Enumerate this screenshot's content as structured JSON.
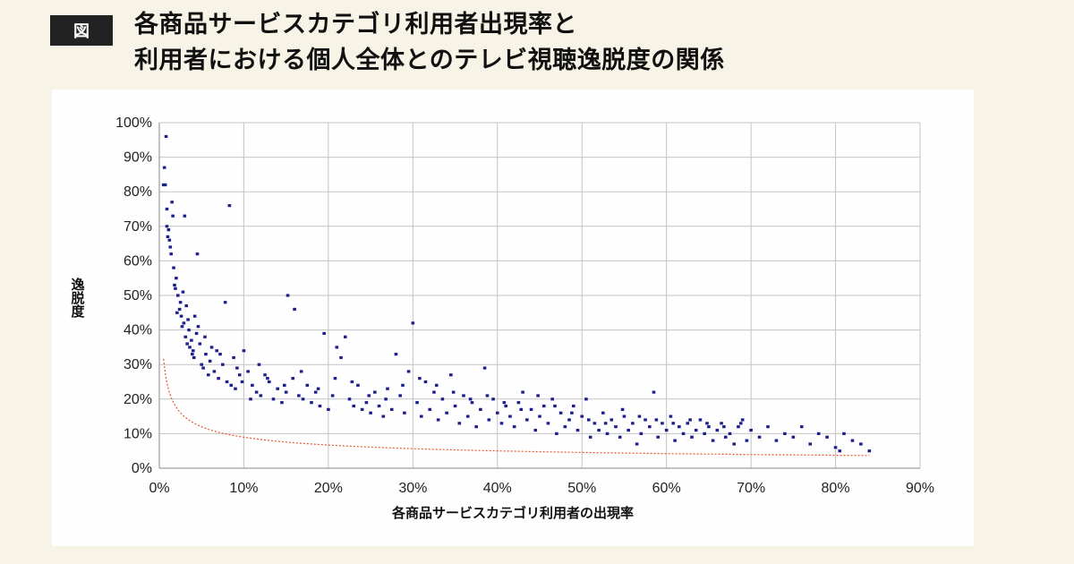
{
  "header": {
    "badge": "図",
    "title_line1": "各商品サービスカテゴリ利用者出現率と",
    "title_line2": "利用者における個人全体とのテレビ視聴逸脱度の関係"
  },
  "colors": {
    "background": "#f7f3e6",
    "panel": "#fefefe",
    "points": "#1c1f8c",
    "trendline": "#e8552f",
    "grid": "#c4c4c4"
  },
  "chart_data": {
    "type": "scatter",
    "xlabel": "各商品サービスカテゴリ利用者の出現率",
    "ylabel": "逸脱度",
    "xlim": [
      0,
      90
    ],
    "ylim": [
      0,
      100
    ],
    "x_ticks": [
      "0%",
      "10%",
      "20%",
      "30%",
      "40%",
      "50%",
      "60%",
      "70%",
      "80%",
      "90%"
    ],
    "y_ticks": [
      "0%",
      "10%",
      "20%",
      "30%",
      "40%",
      "50%",
      "60%",
      "70%",
      "80%",
      "90%",
      "100%"
    ],
    "grid": true,
    "trendline": {
      "type": "power",
      "a": 23.6,
      "b": -0.42
    },
    "points": [
      [
        0.8,
        96
      ],
      [
        0.6,
        87
      ],
      [
        0.5,
        82
      ],
      [
        0.7,
        82
      ],
      [
        0.9,
        75
      ],
      [
        0.9,
        70
      ],
      [
        1.1,
        69
      ],
      [
        1.0,
        67
      ],
      [
        1.2,
        66
      ],
      [
        1.5,
        77
      ],
      [
        1.6,
        73
      ],
      [
        1.3,
        64
      ],
      [
        1.4,
        62
      ],
      [
        1.7,
        58
      ],
      [
        2.0,
        55
      ],
      [
        1.8,
        53
      ],
      [
        2.2,
        50
      ],
      [
        2.5,
        48
      ],
      [
        2.1,
        45
      ],
      [
        2.8,
        51
      ],
      [
        3.0,
        73
      ],
      [
        3.2,
        47
      ],
      [
        2.6,
        44
      ],
      [
        2.9,
        42
      ],
      [
        3.5,
        40
      ],
      [
        3.1,
        38
      ],
      [
        3.8,
        37
      ],
      [
        2.7,
        41
      ],
      [
        3.3,
        36
      ],
      [
        3.6,
        35
      ],
      [
        4.0,
        34
      ],
      [
        3.9,
        33
      ],
      [
        4.2,
        44
      ],
      [
        4.5,
        62
      ],
      [
        4.4,
        39
      ],
      [
        4.8,
        36
      ],
      [
        4.1,
        32
      ],
      [
        5.0,
        30
      ],
      [
        5.5,
        33
      ],
      [
        5.2,
        29
      ],
      [
        6.0,
        31
      ],
      [
        6.5,
        28
      ],
      [
        5.8,
        27
      ],
      [
        7.0,
        26
      ],
      [
        7.5,
        30
      ],
      [
        8.0,
        25
      ],
      [
        8.3,
        76
      ],
      [
        8.5,
        24
      ],
      [
        9.0,
        23
      ],
      [
        9.5,
        27
      ],
      [
        7.8,
        48
      ],
      [
        8.8,
        32
      ],
      [
        9.8,
        25
      ],
      [
        10.0,
        34
      ],
      [
        10.5,
        28
      ],
      [
        11.0,
        24
      ],
      [
        11.5,
        22
      ],
      [
        12.0,
        21
      ],
      [
        12.5,
        27
      ],
      [
        13.0,
        25
      ],
      [
        13.5,
        20
      ],
      [
        14.0,
        23
      ],
      [
        14.5,
        19
      ],
      [
        15.0,
        22
      ],
      [
        15.2,
        50
      ],
      [
        15.8,
        26
      ],
      [
        16.0,
        46
      ],
      [
        16.5,
        21
      ],
      [
        17.0,
        20
      ],
      [
        17.5,
        24
      ],
      [
        18.0,
        19
      ],
      [
        18.5,
        22
      ],
      [
        19.0,
        18
      ],
      [
        19.5,
        39
      ],
      [
        20.0,
        17
      ],
      [
        20.5,
        21
      ],
      [
        21.0,
        35
      ],
      [
        21.5,
        32
      ],
      [
        22.0,
        38
      ],
      [
        22.5,
        20
      ],
      [
        23.0,
        18
      ],
      [
        23.5,
        24
      ],
      [
        24.0,
        17
      ],
      [
        24.5,
        19
      ],
      [
        25.0,
        16
      ],
      [
        25.5,
        22
      ],
      [
        26.0,
        18
      ],
      [
        26.5,
        15
      ],
      [
        27.0,
        23
      ],
      [
        27.5,
        17
      ],
      [
        28.0,
        33
      ],
      [
        28.5,
        21
      ],
      [
        29.0,
        16
      ],
      [
        29.5,
        28
      ],
      [
        30.0,
        42
      ],
      [
        30.5,
        19
      ],
      [
        31.0,
        15
      ],
      [
        31.5,
        25
      ],
      [
        32.0,
        17
      ],
      [
        32.5,
        22
      ],
      [
        33.0,
        14
      ],
      [
        33.5,
        20
      ],
      [
        34.0,
        16
      ],
      [
        34.5,
        27
      ],
      [
        35.0,
        18
      ],
      [
        35.5,
        13
      ],
      [
        36.0,
        21
      ],
      [
        36.5,
        15
      ],
      [
        37.0,
        19
      ],
      [
        37.5,
        12
      ],
      [
        38.0,
        17
      ],
      [
        38.5,
        29
      ],
      [
        39.0,
        14
      ],
      [
        39.5,
        20
      ],
      [
        40.0,
        16
      ],
      [
        40.5,
        13
      ],
      [
        41.0,
        18
      ],
      [
        41.5,
        15
      ],
      [
        42.0,
        12
      ],
      [
        42.5,
        19
      ],
      [
        43.0,
        22
      ],
      [
        43.5,
        14
      ],
      [
        44.0,
        17
      ],
      [
        44.5,
        11
      ],
      [
        45.0,
        15
      ],
      [
        45.5,
        18
      ],
      [
        46.0,
        13
      ],
      [
        46.5,
        20
      ],
      [
        47.0,
        10
      ],
      [
        47.5,
        16
      ],
      [
        48.0,
        12
      ],
      [
        48.5,
        14
      ],
      [
        49.0,
        18
      ],
      [
        49.5,
        11
      ],
      [
        50.0,
        15
      ],
      [
        50.5,
        20
      ],
      [
        51.0,
        9
      ],
      [
        51.5,
        13
      ],
      [
        52.0,
        11
      ],
      [
        52.5,
        16
      ],
      [
        53.0,
        10
      ],
      [
        53.5,
        14
      ],
      [
        54.0,
        12
      ],
      [
        54.5,
        9
      ],
      [
        55.0,
        15
      ],
      [
        55.5,
        11
      ],
      [
        56.0,
        13
      ],
      [
        56.5,
        7
      ],
      [
        57.0,
        10
      ],
      [
        57.5,
        14
      ],
      [
        58.0,
        12
      ],
      [
        58.5,
        22
      ],
      [
        59.0,
        9
      ],
      [
        59.5,
        13
      ],
      [
        60.0,
        11
      ],
      [
        60.5,
        15
      ],
      [
        61.0,
        8
      ],
      [
        61.5,
        12
      ],
      [
        62.0,
        10
      ],
      [
        62.5,
        13
      ],
      [
        63.0,
        9
      ],
      [
        63.5,
        11
      ],
      [
        64.0,
        14
      ],
      [
        64.5,
        10
      ],
      [
        65.0,
        12
      ],
      [
        65.5,
        8
      ],
      [
        66.0,
        11
      ],
      [
        66.5,
        13
      ],
      [
        67.0,
        9
      ],
      [
        67.5,
        10
      ],
      [
        68.0,
        7
      ],
      [
        68.5,
        12
      ],
      [
        69.0,
        14
      ],
      [
        69.5,
        8
      ],
      [
        70.0,
        11
      ],
      [
        71.0,
        9
      ],
      [
        72.0,
        12
      ],
      [
        73.0,
        8
      ],
      [
        74.0,
        10
      ],
      [
        75.0,
        9
      ],
      [
        76.0,
        12
      ],
      [
        77.0,
        7
      ],
      [
        78.0,
        10
      ],
      [
        79.0,
        9
      ],
      [
        80.0,
        6
      ],
      [
        80.5,
        5
      ],
      [
        81.0,
        10
      ],
      [
        82.0,
        8
      ],
      [
        83.0,
        7
      ],
      [
        84.0,
        5
      ],
      [
        4.6,
        41
      ],
      [
        5.4,
        38
      ],
      [
        6.2,
        35
      ],
      [
        6.8,
        34
      ],
      [
        7.2,
        33
      ],
      [
        11.8,
        30
      ],
      [
        12.8,
        26
      ],
      [
        14.8,
        24
      ],
      [
        16.8,
        28
      ],
      [
        18.8,
        23
      ],
      [
        20.8,
        26
      ],
      [
        22.8,
        25
      ],
      [
        24.8,
        21
      ],
      [
        26.8,
        20
      ],
      [
        28.8,
        24
      ],
      [
        30.8,
        26
      ],
      [
        32.8,
        24
      ],
      [
        34.8,
        22
      ],
      [
        36.8,
        20
      ],
      [
        38.8,
        21
      ],
      [
        40.8,
        19
      ],
      [
        42.8,
        17
      ],
      [
        44.8,
        21
      ],
      [
        46.8,
        18
      ],
      [
        48.8,
        16
      ],
      [
        50.8,
        14
      ],
      [
        52.8,
        13
      ],
      [
        54.8,
        17
      ],
      [
        56.8,
        15
      ],
      [
        58.8,
        14
      ],
      [
        60.8,
        13
      ],
      [
        62.8,
        14
      ],
      [
        64.8,
        13
      ],
      [
        66.8,
        12
      ],
      [
        68.8,
        13
      ],
      [
        3.4,
        43
      ],
      [
        2.4,
        46
      ],
      [
        1.9,
        52
      ],
      [
        9.2,
        29
      ],
      [
        10.8,
        20
      ]
    ]
  }
}
